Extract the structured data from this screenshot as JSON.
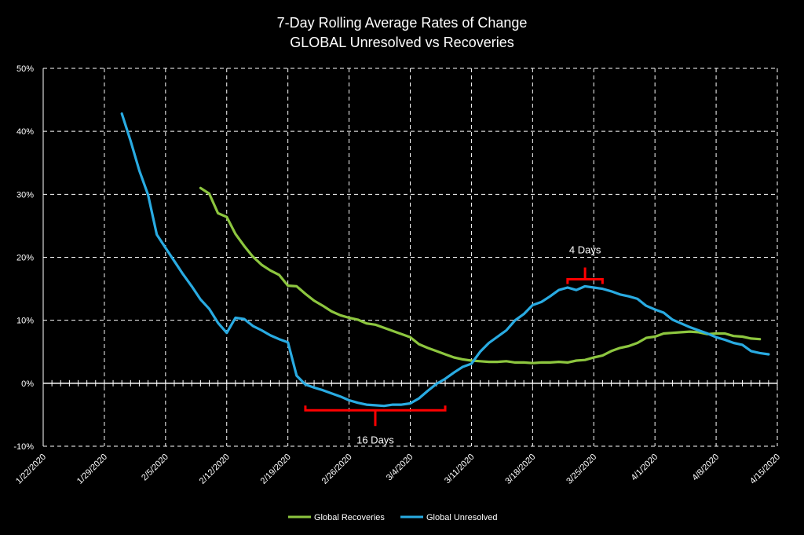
{
  "colors": {
    "background": "#000000",
    "recoveries": "#8DC63F",
    "unresolved": "#29ABE2",
    "bracket": "#FF0000",
    "grid": "#FFFFFF"
  },
  "chart_data": {
    "type": "line",
    "title": "7-Day Rolling Average Rates of Change",
    "subtitle": "GLOBAL Unresolved vs Recoveries",
    "y_tick_labels": [
      "50%",
      "40%",
      "30%",
      "20%",
      "10%",
      "0%",
      "-10%"
    ],
    "y_ticks": [
      50,
      40,
      30,
      20,
      10,
      0,
      -10
    ],
    "ylim": [
      -10,
      50
    ],
    "x_tick_labels": [
      "1/22/2020",
      "1/29/2020",
      "2/5/2020",
      "2/12/2020",
      "2/19/2020",
      "2/26/2020",
      "3/4/2020",
      "3/11/2020",
      "3/18/2020",
      "3/25/2020",
      "4/1/2020",
      "4/8/2020",
      "4/15/2020"
    ],
    "x_start": "2020-01-22",
    "x_end": "2020-04-15",
    "grid": "vertical and horizontal dashed",
    "legend_position": "bottom",
    "series": [
      {
        "name": "Global Recoveries",
        "color": "#8DC63F",
        "x": [
          "2020-02-09",
          "2020-02-10",
          "2020-02-11",
          "2020-02-12",
          "2020-02-13",
          "2020-02-14",
          "2020-02-15",
          "2020-02-16",
          "2020-02-17",
          "2020-02-18",
          "2020-02-19",
          "2020-02-20",
          "2020-02-21",
          "2020-02-22",
          "2020-02-23",
          "2020-02-24",
          "2020-02-25",
          "2020-02-26",
          "2020-02-27",
          "2020-02-28",
          "2020-02-29",
          "2020-03-01",
          "2020-03-02",
          "2020-03-03",
          "2020-03-04",
          "2020-03-05",
          "2020-03-06",
          "2020-03-07",
          "2020-03-08",
          "2020-03-09",
          "2020-03-10",
          "2020-03-11",
          "2020-03-12",
          "2020-03-13",
          "2020-03-14",
          "2020-03-15",
          "2020-03-16",
          "2020-03-17",
          "2020-03-18",
          "2020-03-19",
          "2020-03-20",
          "2020-03-21",
          "2020-03-22",
          "2020-03-23",
          "2020-03-24",
          "2020-03-25",
          "2020-03-26",
          "2020-03-27",
          "2020-03-28",
          "2020-03-29",
          "2020-03-30",
          "2020-03-31",
          "2020-04-01",
          "2020-04-02",
          "2020-04-03",
          "2020-04-04",
          "2020-04-05",
          "2020-04-06",
          "2020-04-07",
          "2020-04-08",
          "2020-04-09",
          "2020-04-10",
          "2020-04-11",
          "2020-04-12",
          "2020-04-13"
        ],
        "values": [
          31.0,
          30.1,
          27.0,
          26.4,
          23.7,
          21.8,
          20.1,
          18.8,
          17.9,
          17.2,
          15.5,
          15.4,
          14.2,
          13.1,
          12.3,
          11.4,
          10.8,
          10.4,
          10.1,
          9.5,
          9.3,
          8.8,
          8.3,
          7.8,
          7.3,
          6.2,
          5.6,
          5.1,
          4.6,
          4.1,
          3.8,
          3.6,
          3.5,
          3.4,
          3.4,
          3.5,
          3.3,
          3.3,
          3.2,
          3.3,
          3.3,
          3.4,
          3.3,
          3.6,
          3.7,
          4.1,
          4.4,
          5.1,
          5.6,
          5.9,
          6.4,
          7.2,
          7.4,
          7.9,
          8.0,
          8.1,
          8.2,
          8.1,
          7.8,
          7.9,
          7.9,
          7.5,
          7.4,
          7.1,
          7.0
        ]
      },
      {
        "name": "Global Unresolved",
        "color": "#29ABE2",
        "x": [
          "2020-01-31",
          "2020-02-01",
          "2020-02-02",
          "2020-02-03",
          "2020-02-04",
          "2020-02-05",
          "2020-02-06",
          "2020-02-07",
          "2020-02-08",
          "2020-02-09",
          "2020-02-10",
          "2020-02-11",
          "2020-02-12",
          "2020-02-13",
          "2020-02-14",
          "2020-02-15",
          "2020-02-16",
          "2020-02-17",
          "2020-02-18",
          "2020-02-19",
          "2020-02-20",
          "2020-02-21",
          "2020-02-22",
          "2020-02-23",
          "2020-02-24",
          "2020-02-25",
          "2020-02-26",
          "2020-02-27",
          "2020-02-28",
          "2020-02-29",
          "2020-03-01",
          "2020-03-02",
          "2020-03-03",
          "2020-03-04",
          "2020-03-05",
          "2020-03-06",
          "2020-03-07",
          "2020-03-08",
          "2020-03-09",
          "2020-03-10",
          "2020-03-11",
          "2020-03-12",
          "2020-03-13",
          "2020-03-14",
          "2020-03-15",
          "2020-03-16",
          "2020-03-17",
          "2020-03-18",
          "2020-03-19",
          "2020-03-20",
          "2020-03-21",
          "2020-03-22",
          "2020-03-23",
          "2020-03-24",
          "2020-03-25",
          "2020-03-26",
          "2020-03-27",
          "2020-03-28",
          "2020-03-29",
          "2020-03-30",
          "2020-03-31",
          "2020-04-01",
          "2020-04-02",
          "2020-04-03",
          "2020-04-04",
          "2020-04-05",
          "2020-04-06",
          "2020-04-07",
          "2020-04-08",
          "2020-04-09",
          "2020-04-10",
          "2020-04-11",
          "2020-04-12",
          "2020-04-13",
          "2020-04-14"
        ],
        "values": [
          42.8,
          38.5,
          33.8,
          29.9,
          23.6,
          21.5,
          19.4,
          17.3,
          15.4,
          13.3,
          11.8,
          9.6,
          8.0,
          10.4,
          10.2,
          9.1,
          8.4,
          7.6,
          7.0,
          6.5,
          1.2,
          -0.2,
          -0.7,
          -1.1,
          -1.6,
          -2.1,
          -2.7,
          -3.1,
          -3.4,
          -3.5,
          -3.6,
          -3.4,
          -3.4,
          -3.2,
          -2.4,
          -1.2,
          -0.1,
          0.7,
          1.7,
          2.6,
          3.1,
          5.0,
          6.4,
          7.4,
          8.4,
          10.0,
          11.0,
          12.4,
          12.9,
          13.8,
          14.8,
          15.2,
          14.8,
          15.4,
          15.2,
          15.0,
          14.6,
          14.1,
          13.8,
          13.4,
          12.3,
          11.7,
          11.2,
          10.1,
          9.5,
          8.9,
          8.4,
          7.9,
          7.3,
          6.9,
          6.4,
          6.1,
          5.1,
          4.8,
          4.6
        ]
      }
    ],
    "annotations": [
      {
        "label": "16 Days",
        "from": "2020-02-21",
        "to": "2020-03-08",
        "y": -4.3,
        "placement": "below"
      },
      {
        "label": "4 Days",
        "from": "2020-03-22",
        "to": "2020-03-26",
        "y": 16.5,
        "placement": "above"
      }
    ]
  }
}
